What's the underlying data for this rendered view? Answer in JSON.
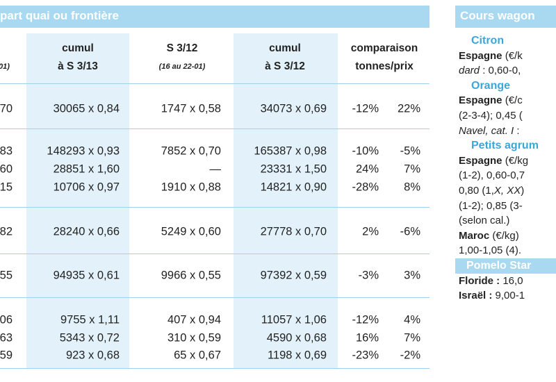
{
  "left": {
    "title": "part quai ou frontière",
    "columns": [
      {
        "lines": [
          "01)"
        ]
      },
      {
        "lines": [
          "cumul",
          "à S 3/13"
        ]
      },
      {
        "lines": [
          "S 3/12",
          "(16 au 22-01)"
        ]
      },
      {
        "lines": [
          "cumul",
          "à S 3/12"
        ]
      },
      {
        "lines": [
          "comparaison",
          "tonnes/prix"
        ]
      }
    ],
    "rows": [
      [
        "70",
        "30065 x 0,84",
        "1747 x 0,58",
        "34073 x 0,69",
        "-12%",
        "22%"
      ],
      [
        "83",
        "148293 x 0,93",
        "7852 x 0,70",
        "165387 x 0,98",
        "-10%",
        "-5%"
      ],
      [
        "60",
        "28851 x 1,60",
        "—",
        "23331 x 1,50",
        "24%",
        "7%"
      ],
      [
        "15",
        "10706 x 0,97",
        "1910 x 0,88",
        "14821 x 0,90",
        "-28%",
        "8%"
      ],
      [
        "82",
        "28240 x 0,66",
        "5249 x 0,60",
        "27778 x 0,70",
        "2%",
        "-6%"
      ],
      [
        "55",
        "94935 x 0,61",
        "9966 x 0,55",
        "97392 x 0,59",
        "-3%",
        "3%"
      ],
      [
        "06",
        "9755 x 1,11",
        "407 x 0,94",
        "11057 x 1,06",
        "-12%",
        "4%"
      ],
      [
        "63",
        "5343 x 0,72",
        "310 x 0,59",
        "4590 x 0,68",
        "16%",
        "7%"
      ],
      [
        "59",
        "923 x 0,68",
        "65 x 0,67",
        "1198 x 0,69",
        "-23%",
        "-2%"
      ]
    ]
  },
  "right": {
    "title": "Cours wagon",
    "lines": [
      {
        "kind": "heading",
        "text": "Citron"
      },
      {
        "kind": "text",
        "segments": [
          {
            "style": "bold",
            "text": "Espagne"
          },
          {
            "style": "plain",
            "text": " (€/k"
          }
        ]
      },
      {
        "kind": "text",
        "segments": [
          {
            "style": "italic",
            "text": "dard"
          },
          {
            "style": "plain",
            "text": " : 0,60-0,"
          }
        ]
      },
      {
        "kind": "heading",
        "text": "Orange"
      },
      {
        "kind": "text",
        "segments": [
          {
            "style": "bold",
            "text": "Espagne"
          },
          {
            "style": "plain",
            "text": " (€/c"
          }
        ]
      },
      {
        "kind": "text",
        "segments": [
          {
            "style": "plain",
            "text": "(2-3-4); 0,45 ("
          }
        ]
      },
      {
        "kind": "text",
        "segments": [
          {
            "style": "italic",
            "text": "Navel, cat. I"
          },
          {
            "style": "plain",
            "text": " : "
          }
        ]
      },
      {
        "kind": "heading",
        "text": "Petits agrum"
      },
      {
        "kind": "text",
        "segments": [
          {
            "style": "bold",
            "text": "Espagne"
          },
          {
            "style": "plain",
            "text": " (€/kg"
          }
        ]
      },
      {
        "kind": "text",
        "segments": [
          {
            "style": "plain",
            "text": "(1-2), 0,60-0,7"
          }
        ]
      },
      {
        "kind": "text",
        "segments": [
          {
            "style": "plain",
            "text": "0,80 (1,"
          },
          {
            "style": "italic",
            "text": "X, XX"
          },
          {
            "style": "plain",
            "text": ")"
          }
        ]
      },
      {
        "kind": "text",
        "segments": [
          {
            "style": "plain",
            "text": "(1-2); 0,85 (3-"
          }
        ]
      },
      {
        "kind": "text",
        "segments": [
          {
            "style": "plain",
            "text": "(selon cal.)"
          }
        ]
      },
      {
        "kind": "text",
        "segments": [
          {
            "style": "bold",
            "text": "Maroc"
          },
          {
            "style": "plain",
            "text": " (€/kg)"
          }
        ]
      },
      {
        "kind": "text",
        "segments": [
          {
            "style": "plain",
            "text": "1,00-1,05 (4)."
          }
        ]
      },
      {
        "kind": "banner",
        "text": "Pomelo Star"
      },
      {
        "kind": "text",
        "segments": [
          {
            "style": "bold",
            "text": "Floride :"
          },
          {
            "style": "plain",
            "text": " 16,0"
          }
        ]
      },
      {
        "kind": "text",
        "segments": [
          {
            "style": "bold",
            "text": "Israël :"
          },
          {
            "style": "plain",
            "text": " 9,00-1"
          }
        ]
      }
    ]
  }
}
